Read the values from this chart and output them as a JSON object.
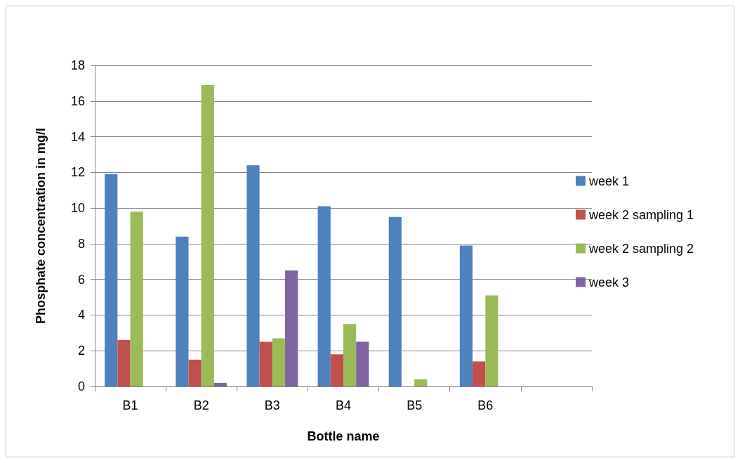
{
  "chart_data": {
    "type": "bar",
    "xlabel": "Bottle name",
    "ylabel": "Phosphate concentration in mg/l",
    "categories": [
      "B1",
      "B2",
      "B3",
      "B4",
      "B5",
      "B6",
      null
    ],
    "series": [
      {
        "name": "week 1",
        "color": "#4f81bd",
        "values": [
          11.9,
          8.4,
          12.4,
          10.1,
          9.5,
          7.9,
          null
        ]
      },
      {
        "name": "week 2 sampling 1",
        "color": "#c0504d",
        "values": [
          2.6,
          1.5,
          2.5,
          1.8,
          0,
          1.4,
          null
        ]
      },
      {
        "name": "week 2 sampling 2",
        "color": "#9bbb59",
        "values": [
          9.8,
          16.9,
          2.7,
          3.5,
          0.4,
          5.1,
          null
        ]
      },
      {
        "name": "week 3",
        "color": "#8064a2",
        "values": [
          0,
          0.2,
          6.5,
          2.5,
          0,
          0,
          null
        ]
      }
    ],
    "ylim": [
      0,
      18
    ],
    "yticks": [
      0,
      2,
      4,
      6,
      8,
      10,
      12,
      14,
      16,
      18
    ],
    "grid": "y",
    "legend": "right"
  }
}
